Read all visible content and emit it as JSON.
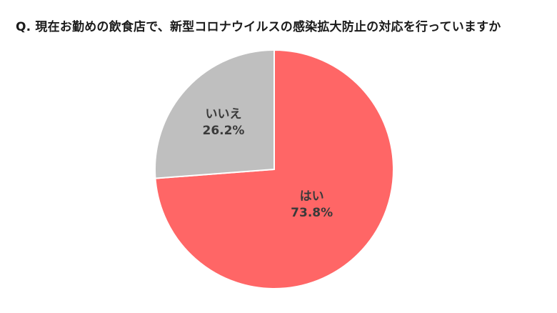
{
  "question": "Q.  現在お勤めの飲食店で、新型コロナウイルスの感染拡大防止の対応を行っていますか",
  "chart_data": {
    "type": "pie",
    "title": "Q.  現在お勤めの飲食店で、新型コロナウイルスの感染拡大防止の対応を行っていますか",
    "start": "12 o'clock, clockwise",
    "slices": [
      {
        "label": "はい",
        "value": 73.8,
        "value_text": "73.8%",
        "color": "#ff6666"
      },
      {
        "label": "いいえ",
        "value": 26.2,
        "value_text": "26.2%",
        "color": "#bfbfbf"
      }
    ],
    "legend": "none",
    "slice_border_color": "#ffffff"
  }
}
